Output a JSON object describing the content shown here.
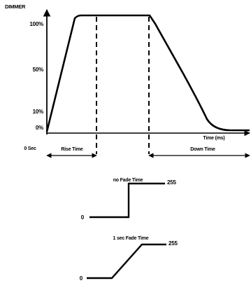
{
  "main_chart": {
    "y_axis_title": "DIMMER",
    "y_ticks": [
      "100%",
      "50%",
      "10%",
      "0%"
    ],
    "origin_label": "0 Sec",
    "x_axis_title": "Time (ms)",
    "rise_label": "Rise Time",
    "down_label": "Down Time"
  },
  "step_no_fade": {
    "title": "no Fade Time",
    "low_label": "0",
    "high_label": "255"
  },
  "step_one_sec": {
    "title": "1 sec Fade Time",
    "low_label": "0",
    "high_label": "255"
  }
}
